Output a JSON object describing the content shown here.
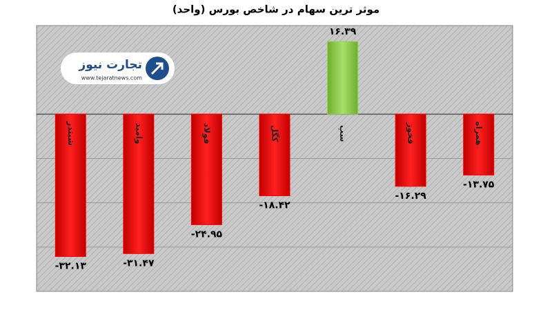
{
  "chart_data": {
    "type": "bar",
    "title": "موثر ترین سهام در شاخص بورس (واحد)",
    "categories": [
      "شبندر",
      "وامید",
      "فولاد",
      "کگل",
      "سپ",
      "فخوز",
      "همراه"
    ],
    "values": [
      -32.13,
      -31.47,
      -24.95,
      -18.42,
      16.39,
      -16.29,
      -13.75
    ],
    "value_labels": [
      "-۳۲.۱۳",
      "-۳۱.۴۷",
      "-۲۴.۹۵",
      "-۱۸.۴۲",
      "۱۶.۳۹",
      "-۱۶.۲۹",
      "-۱۳.۷۵"
    ],
    "negative_color": "#ff0000",
    "positive_color": "#92d050",
    "ylim": [
      -40,
      20
    ],
    "yticks": [
      -30,
      -20,
      -10,
      0
    ],
    "grid": true,
    "logo": {
      "name": "تجارت نیوز",
      "url": "www.tejaratnews.com"
    }
  }
}
